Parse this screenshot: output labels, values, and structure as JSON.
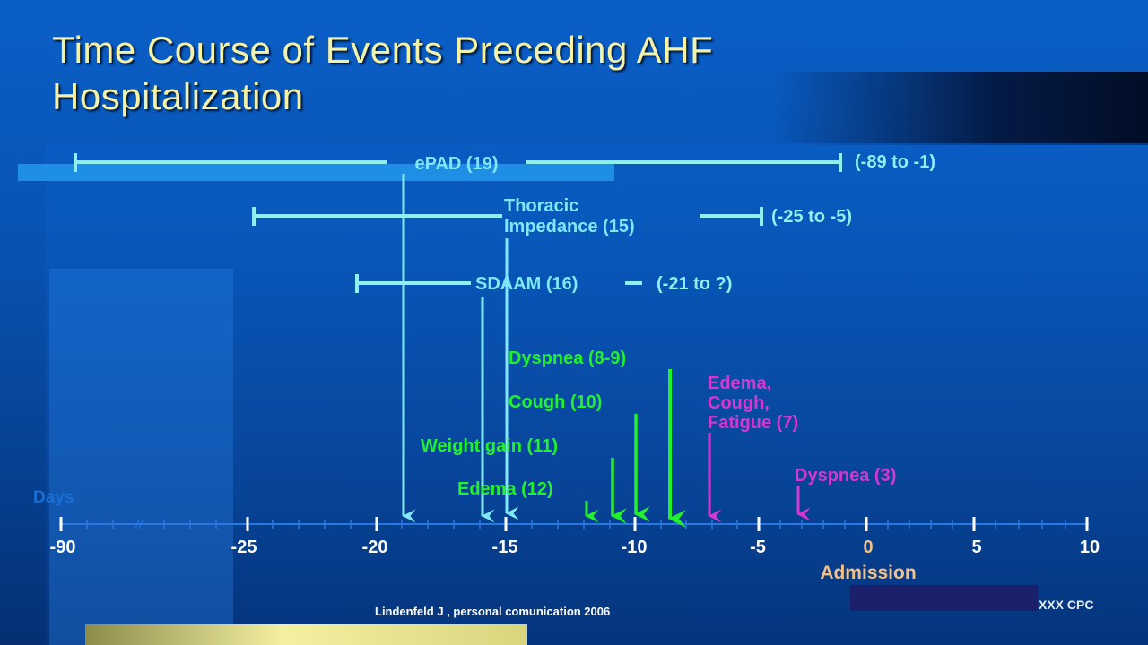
{
  "slide": {
    "title_line1": "Time Course of Events Preceding AHF",
    "title_line2": "Hospitalization",
    "credit": "Lindenfeld J , personal comunication 2006",
    "footer_tag": "XXX CPC"
  },
  "colors": {
    "monitor": "#7fe8f4",
    "monitor_range": "#8ff0ee",
    "symptom_green": "#22f02e",
    "symptom_magenta": "#d438d0",
    "axis_text": "#ffffff",
    "axis_line": "#2a78e0",
    "admission": "#f0c088",
    "days": "#1a6fd6"
  },
  "axis": {
    "label": "Days",
    "admission_label": "Admission",
    "break_mark": "//",
    "ticks": [
      "-90",
      "-25",
      "-20",
      "-15",
      "-10",
      "-5",
      "0",
      "5",
      "10"
    ]
  },
  "monitors": [
    {
      "label": "ePAD (19)",
      "range": "(-89 to -1)",
      "day": -19
    },
    {
      "label_line1": "Thoracic",
      "label_line2": "Impedance (15)",
      "range": "(-25 to -5)",
      "day": -15
    },
    {
      "label": "SDAAM (16)",
      "range": "(-21 to ?)",
      "day": -16
    }
  ],
  "symptoms": [
    {
      "label": "Dyspnea (8-9)",
      "day": -8.5,
      "group": "green"
    },
    {
      "label": "Cough (10)",
      "day": -10,
      "group": "green"
    },
    {
      "label": "Weight gain (11)",
      "day": -11,
      "group": "green"
    },
    {
      "label": "Edema (12)",
      "day": -12,
      "group": "green"
    },
    {
      "label_line1": "Edema,",
      "label_line2": "Cough,",
      "label_line3": "Fatigue (7)",
      "day": -7,
      "group": "magenta"
    },
    {
      "label": "Dyspnea (3)",
      "day": -3,
      "group": "magenta"
    }
  ]
}
